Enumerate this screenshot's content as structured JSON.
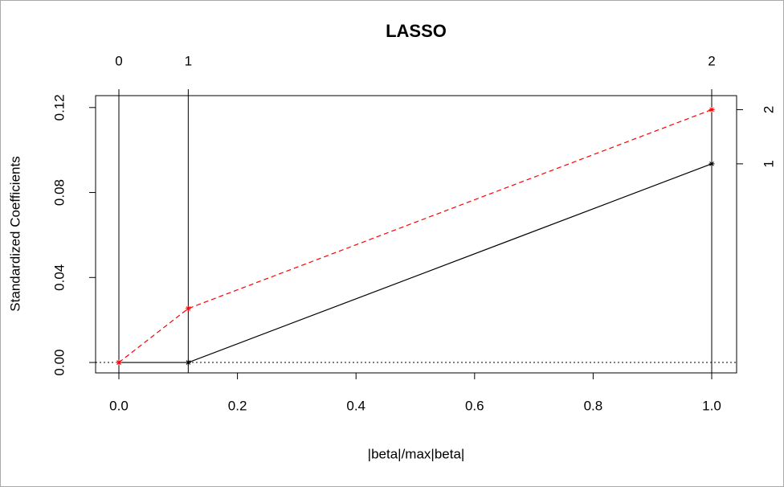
{
  "chart_data": {
    "type": "line",
    "title": "LASSO",
    "x_label": "|beta|/max|beta|",
    "y_label": "Standardized Coefficients",
    "x": [
      0,
      0.117,
      1
    ],
    "steps": [
      0,
      1,
      2
    ],
    "series": [
      {
        "name": "1",
        "color": "#000000",
        "dash": "solid",
        "values": [
          0,
          0,
          0.0935
        ]
      },
      {
        "name": "2",
        "color": "#ff0000",
        "dash": "dashed",
        "values": [
          0,
          0.0254,
          0.119
        ]
      }
    ],
    "zero_line": 0,
    "xlim": [
      -0.0393,
      1.042
    ],
    "ylim": [
      -0.0049,
      0.1256
    ],
    "xticks": [
      {
        "value": 0,
        "label": "0.0"
      },
      {
        "value": 0.2,
        "label": "0.2"
      },
      {
        "value": 0.4,
        "label": "0.4"
      },
      {
        "value": 0.6,
        "label": "0.6"
      },
      {
        "value": 0.8,
        "label": "0.8"
      },
      {
        "value": 1,
        "label": "1.0"
      }
    ],
    "yticks": [
      {
        "value": 0,
        "label": "0.00"
      },
      {
        "value": 0.04,
        "label": "0.04"
      },
      {
        "value": 0.08,
        "label": "0.08"
      },
      {
        "value": 0.12,
        "label": "0.12"
      }
    ]
  }
}
